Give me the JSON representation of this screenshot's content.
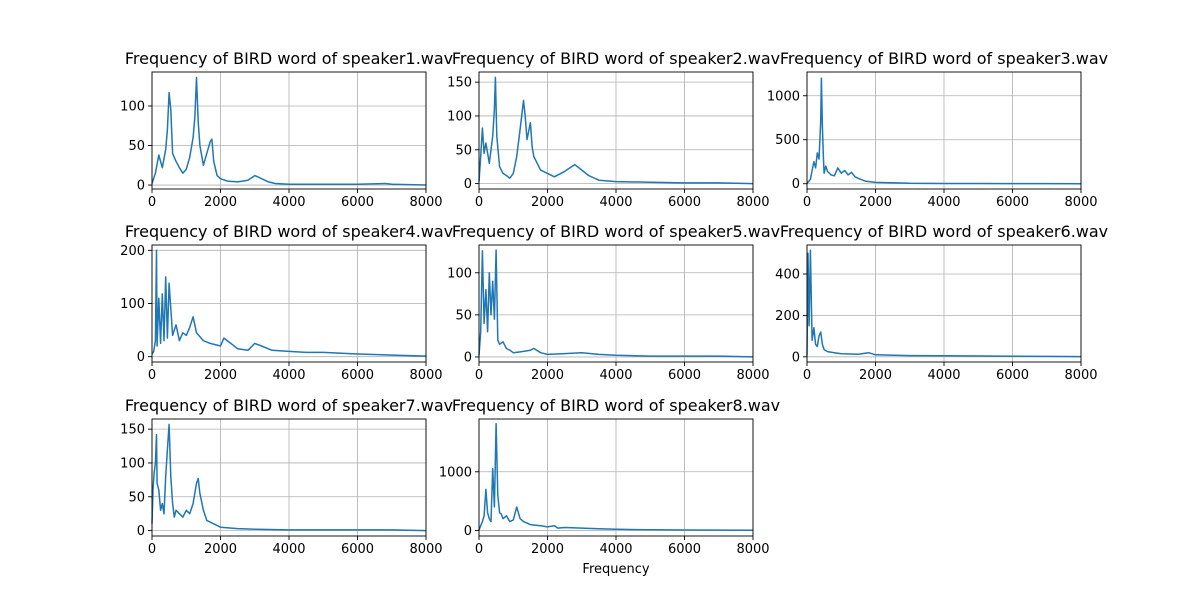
{
  "figure": {
    "background": "#ffffff",
    "line_color": "#1f77b4",
    "grid_color": "#b0b0b0"
  },
  "chart_data": [
    {
      "type": "line",
      "title": "Frequency of BIRD word of speaker1.wav",
      "xlabel": "",
      "ylabel": "",
      "xlim": [
        0,
        8000
      ],
      "ylim": [
        -5,
        143
      ],
      "xticks": [
        0,
        2000,
        4000,
        6000,
        8000
      ],
      "yticks": [
        0,
        50,
        100
      ],
      "grid": true,
      "series": [
        {
          "color": "#1f77b4",
          "x": [
            0,
            100,
            200,
            300,
            400,
            450,
            500,
            550,
            600,
            700,
            800,
            900,
            1000,
            1100,
            1200,
            1250,
            1300,
            1350,
            1400,
            1500,
            1600,
            1700,
            1750,
            1800,
            1900,
            2000,
            2200,
            2500,
            2800,
            3000,
            3100,
            3200,
            3400,
            3600,
            4000,
            5000,
            6000,
            6800,
            7000,
            8000
          ],
          "y": [
            2,
            15,
            38,
            22,
            45,
            70,
            117,
            95,
            40,
            30,
            22,
            15,
            20,
            35,
            60,
            85,
            136,
            80,
            50,
            25,
            40,
            55,
            58,
            30,
            12,
            8,
            5,
            4,
            6,
            12,
            10,
            8,
            4,
            2,
            1,
            1,
            1,
            2,
            1,
            0
          ]
        }
      ]
    },
    {
      "type": "line",
      "title": "Frequency of BIRD word of speaker2.wav",
      "xlabel": "",
      "ylabel": "",
      "xlim": [
        0,
        8000
      ],
      "ylim": [
        -8,
        165
      ],
      "xticks": [
        0,
        2000,
        4000,
        6000,
        8000
      ],
      "yticks": [
        0,
        50,
        100,
        150
      ],
      "grid": true,
      "series": [
        {
          "color": "#1f77b4",
          "x": [
            0,
            50,
            100,
            150,
            200,
            300,
            400,
            450,
            480,
            520,
            600,
            700,
            800,
            900,
            1000,
            1100,
            1200,
            1300,
            1350,
            1400,
            1500,
            1550,
            1600,
            1700,
            1800,
            2000,
            2200,
            2500,
            2700,
            2800,
            3000,
            3200,
            3500,
            4000,
            5000,
            6000,
            7000,
            8000
          ],
          "y": [
            3,
            40,
            82,
            45,
            60,
            30,
            70,
            110,
            157,
            70,
            25,
            15,
            12,
            8,
            15,
            40,
            80,
            123,
            100,
            65,
            90,
            55,
            40,
            30,
            20,
            15,
            10,
            18,
            25,
            28,
            20,
            12,
            5,
            3,
            2,
            1,
            1,
            0
          ]
        }
      ]
    },
    {
      "type": "line",
      "title": "Frequency of BIRD word of speaker3.wav",
      "xlabel": "",
      "ylabel": "",
      "xlim": [
        0,
        8000
      ],
      "ylim": [
        -60,
        1270
      ],
      "xticks": [
        0,
        2000,
        4000,
        6000,
        8000
      ],
      "yticks": [
        0,
        500,
        1000
      ],
      "grid": true,
      "series": [
        {
          "color": "#1f77b4",
          "x": [
            0,
            100,
            150,
            200,
            250,
            300,
            350,
            400,
            420,
            450,
            480,
            500,
            550,
            600,
            700,
            800,
            900,
            1000,
            1100,
            1200,
            1300,
            1400,
            1500,
            1700,
            2000,
            2500,
            3000,
            4000,
            5000,
            6000,
            7000,
            8000
          ],
          "y": [
            2,
            50,
            150,
            250,
            180,
            350,
            280,
            700,
            1200,
            650,
            300,
            120,
            200,
            140,
            100,
            90,
            180,
            120,
            150,
            100,
            130,
            80,
            60,
            30,
            15,
            10,
            5,
            3,
            2,
            1,
            1,
            0
          ]
        }
      ]
    },
    {
      "type": "line",
      "title": "Frequency of BIRD word of speaker4.wav",
      "xlabel": "",
      "ylabel": "",
      "xlim": [
        0,
        8000
      ],
      "ylim": [
        -10,
        210
      ],
      "xticks": [
        0,
        2000,
        4000,
        6000,
        8000
      ],
      "yticks": [
        0,
        100,
        200
      ],
      "grid": true,
      "series": [
        {
          "color": "#1f77b4",
          "x": [
            0,
            50,
            100,
            130,
            150,
            200,
            250,
            300,
            350,
            400,
            450,
            500,
            600,
            700,
            800,
            900,
            1000,
            1100,
            1200,
            1300,
            1500,
            1700,
            2000,
            2100,
            2300,
            2500,
            2800,
            3000,
            3200,
            3500,
            4000,
            4500,
            5000,
            6000,
            7000,
            8000
          ],
          "y": [
            5,
            10,
            30,
            200,
            20,
            110,
            25,
            118,
            30,
            150,
            35,
            138,
            40,
            60,
            30,
            45,
            40,
            55,
            75,
            45,
            30,
            25,
            20,
            35,
            25,
            15,
            12,
            25,
            20,
            12,
            10,
            8,
            8,
            5,
            3,
            1
          ]
        }
      ]
    },
    {
      "type": "line",
      "title": "Frequency of BIRD word of speaker5.wav",
      "xlabel": "",
      "ylabel": "",
      "xlim": [
        0,
        8000
      ],
      "ylim": [
        -6,
        133
      ],
      "xticks": [
        0,
        2000,
        4000,
        6000,
        8000
      ],
      "yticks": [
        0,
        50,
        100
      ],
      "grid": true,
      "series": [
        {
          "color": "#1f77b4",
          "x": [
            0,
            50,
            100,
            150,
            200,
            250,
            300,
            350,
            400,
            450,
            500,
            550,
            600,
            700,
            800,
            900,
            1000,
            1200,
            1500,
            1600,
            1800,
            2000,
            2500,
            3000,
            3500,
            4000,
            5000,
            6000,
            7000,
            8000
          ],
          "y": [
            2,
            30,
            126,
            40,
            80,
            30,
            100,
            50,
            90,
            45,
            127,
            20,
            15,
            18,
            10,
            8,
            5,
            6,
            8,
            10,
            5,
            3,
            4,
            5,
            3,
            2,
            1,
            1,
            1,
            0
          ]
        }
      ]
    },
    {
      "type": "line",
      "title": "Frequency of BIRD word of speaker6.wav",
      "xlabel": "",
      "ylabel": "",
      "xlim": [
        0,
        8000
      ],
      "ylim": [
        -25,
        540
      ],
      "xticks": [
        0,
        2000,
        4000,
        6000,
        8000
      ],
      "yticks": [
        0,
        200,
        400
      ],
      "grid": true,
      "series": [
        {
          "color": "#1f77b4",
          "x": [
            0,
            30,
            60,
            100,
            130,
            150,
            200,
            250,
            300,
            350,
            400,
            450,
            500,
            600,
            800,
            1000,
            1500,
            1800,
            2000,
            3000,
            4000,
            5000,
            6000,
            7000,
            8000
          ],
          "y": [
            5,
            500,
            150,
            515,
            230,
            80,
            140,
            60,
            50,
            100,
            120,
            60,
            35,
            25,
            20,
            15,
            12,
            20,
            10,
            6,
            5,
            4,
            3,
            2,
            1
          ]
        }
      ]
    },
    {
      "type": "line",
      "title": "Frequency of BIRD word of speaker7.wav",
      "xlabel": "",
      "ylabel": "",
      "xlim": [
        0,
        8000
      ],
      "ylim": [
        -8,
        165
      ],
      "xticks": [
        0,
        2000,
        4000,
        6000,
        8000
      ],
      "yticks": [
        0,
        50,
        100,
        150
      ],
      "grid": true,
      "series": [
        {
          "color": "#1f77b4",
          "x": [
            0,
            30,
            60,
            100,
            130,
            150,
            200,
            250,
            300,
            350,
            400,
            450,
            500,
            550,
            600,
            650,
            700,
            800,
            900,
            1000,
            1100,
            1200,
            1300,
            1350,
            1400,
            1500,
            1600,
            1800,
            2000,
            2500,
            3000,
            4000,
            5000,
            6000,
            7000,
            8000
          ],
          "y": [
            10,
            60,
            85,
            100,
            142,
            70,
            60,
            30,
            40,
            25,
            80,
            120,
            157,
            80,
            40,
            20,
            30,
            25,
            20,
            30,
            25,
            40,
            70,
            77,
            55,
            30,
            15,
            10,
            5,
            3,
            2,
            1,
            1,
            1,
            1,
            0
          ]
        }
      ]
    },
    {
      "type": "line",
      "title": "Frequency of BIRD word of speaker8.wav",
      "xlabel": "Frequency",
      "ylabel": "",
      "xlim": [
        0,
        8000
      ],
      "ylim": [
        -95,
        1900
      ],
      "xticks": [
        0,
        2000,
        4000,
        6000,
        8000
      ],
      "yticks": [
        0,
        1000
      ],
      "grid": true,
      "series": [
        {
          "color": "#1f77b4",
          "x": [
            0,
            50,
            100,
            150,
            200,
            250,
            300,
            350,
            400,
            450,
            500,
            550,
            600,
            650,
            700,
            800,
            900,
            1000,
            1100,
            1200,
            1300,
            1500,
            1800,
            2000,
            2200,
            2300,
            2500,
            3000,
            3500,
            4000,
            5000,
            6000,
            7000,
            8000
          ],
          "y": [
            5,
            80,
            150,
            250,
            700,
            300,
            200,
            150,
            1050,
            400,
            1820,
            600,
            300,
            280,
            200,
            250,
            150,
            180,
            400,
            200,
            150,
            100,
            80,
            60,
            80,
            40,
            50,
            40,
            30,
            20,
            10,
            8,
            5,
            2
          ]
        }
      ]
    }
  ]
}
